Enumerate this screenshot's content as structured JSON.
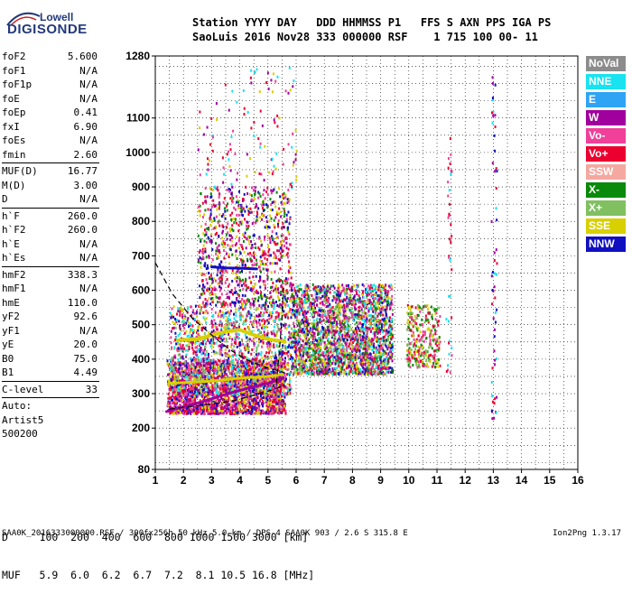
{
  "logo": {
    "brand_top": "Lowell",
    "brand_main": "DIGISONDE"
  },
  "header": {
    "line1": "Station YYYY DAY   DDD HHMMSS P1   FFS S AXN PPS IGA PS",
    "line2": "SaoLuis 2016 Nov28 333 000000 RSF    1 715 100 00- 11"
  },
  "params": {
    "group1": [
      {
        "label": "foF2",
        "value": "5.600"
      },
      {
        "label": "foF1",
        "value": "N/A"
      },
      {
        "label": "foF1p",
        "value": "N/A"
      },
      {
        "label": "foE",
        "value": "N/A"
      },
      {
        "label": "foEp",
        "value": "0.41"
      },
      {
        "label": "fxI",
        "value": "6.90"
      },
      {
        "label": "foEs",
        "value": "N/A"
      },
      {
        "label": "fmin",
        "value": "2.60"
      }
    ],
    "group2": [
      {
        "label": "MUF(D)",
        "value": "16.77"
      },
      {
        "label": "M(D)",
        "value": "3.00"
      },
      {
        "label": "D",
        "value": "N/A"
      }
    ],
    "group3": [
      {
        "label": "h`F",
        "value": "260.0"
      },
      {
        "label": "h`F2",
        "value": "260.0"
      },
      {
        "label": "h`E",
        "value": "N/A"
      },
      {
        "label": "h`Es",
        "value": "N/A"
      }
    ],
    "group4": [
      {
        "label": "hmF2",
        "value": "338.3"
      },
      {
        "label": "hmF1",
        "value": "N/A"
      },
      {
        "label": "hmE",
        "value": "110.0"
      },
      {
        "label": "yF2",
        "value": "92.6"
      },
      {
        "label": "yF1",
        "value": "N/A"
      },
      {
        "label": "yE",
        "value": "20.0"
      },
      {
        "label": "B0",
        "value": "75.0"
      },
      {
        "label": "B1",
        "value": "4.49"
      }
    ],
    "group5": [
      {
        "label": "C-level",
        "value": "33"
      }
    ],
    "autoscaling": [
      "Auto:",
      "Artist5",
      "500200"
    ]
  },
  "legend": [
    {
      "name": "NoVal",
      "color": "#8c8c8c"
    },
    {
      "name": "NNE",
      "color": "#19e3f0"
    },
    {
      "name": "E",
      "color": "#2fa4f5"
    },
    {
      "name": "W",
      "color": "#a0009e"
    },
    {
      "name": "Vo-",
      "color": "#f0409a"
    },
    {
      "name": "Vo+",
      "color": "#ec0030"
    },
    {
      "name": "SSW",
      "color": "#f4a8a0"
    },
    {
      "name": "X-",
      "color": "#0a8a0a"
    },
    {
      "name": "X+",
      "color": "#80c060"
    },
    {
      "name": "SSE",
      "color": "#d8d000"
    },
    {
      "name": "NNW",
      "color": "#1010c0"
    }
  ],
  "bottom_table": {
    "line1": "D     100  200  400  600  800 1000 1500 3000 [km]",
    "line2": "MUF   5.9  6.0  6.2  6.7  7.2  8.1 10.5 16.8 [MHz]"
  },
  "footer": {
    "left": "SAA0K_2016333000000.RSF / 300fx256h 50 kHz 5.0 km / DPS-4 SAA0K 903 / 2.6 S 315.8 E",
    "right": "Ion2Png 1.3.17"
  },
  "chart_data": {
    "type": "scatter",
    "title": "",
    "xlabel": "",
    "ylabel": "",
    "xlim": [
      1,
      16
    ],
    "ylim": [
      80,
      1280
    ],
    "x_ticks": [
      1,
      2,
      3,
      4,
      5,
      6,
      7,
      8,
      9,
      10,
      11,
      12,
      13,
      14,
      15,
      16
    ],
    "y_ticks": [
      80,
      200,
      300,
      400,
      500,
      600,
      700,
      800,
      900,
      1000,
      1100,
      1280
    ],
    "grid": true,
    "legend_position": "right",
    "clusters": [
      {
        "x_range": [
          1.4,
          5.6
        ],
        "y_range": [
          245,
          400
        ],
        "colors": [
          "#a0009e",
          "#ec0030",
          "#f0409a",
          "#1010c0",
          "#d8d000"
        ],
        "density": 0.9,
        "count": 2200
      },
      {
        "x_range": [
          1.5,
          5.8
        ],
        "y_range": [
          300,
          560
        ],
        "colors": [
          "#ec0030",
          "#f0409a",
          "#a0009e",
          "#d8d000",
          "#80c060",
          "#1010c0",
          "#19e3f0"
        ],
        "density": 0.6,
        "count": 1500
      },
      {
        "x_range": [
          2.5,
          5.8
        ],
        "y_range": [
          560,
          900
        ],
        "colors": [
          "#ec0030",
          "#f0409a",
          "#a0009e",
          "#1010c0",
          "#d8d000",
          "#0a8a0a"
        ],
        "density": 0.25,
        "count": 900
      },
      {
        "x_range": [
          5.8,
          9.4
        ],
        "y_range": [
          360,
          620
        ],
        "colors": [
          "#ec0030",
          "#f0409a",
          "#a0009e",
          "#1010c0",
          "#d8d000",
          "#80c060",
          "#0a8a0a",
          "#19e3f0"
        ],
        "density": 0.6,
        "count": 2400
      },
      {
        "x_range": [
          9.9,
          11.1
        ],
        "y_range": [
          380,
          560
        ],
        "colors": [
          "#ec0030",
          "#f0409a",
          "#80c060",
          "#d8d000",
          "#0a8a0a"
        ],
        "density": 0.45,
        "count": 300
      },
      {
        "x_range": [
          2.5,
          6.0
        ],
        "y_range": [
          900,
          1250
        ],
        "colors": [
          "#ec0030",
          "#f0409a",
          "#a0009e",
          "#d8d000",
          "#19e3f0"
        ],
        "density": 0.05,
        "count": 120
      },
      {
        "x_range": [
          12.9,
          13.1
        ],
        "y_range": [
          230,
          1260
        ],
        "colors": [
          "#1010c0",
          "#a0009e",
          "#19e3f0",
          "#ec0030"
        ],
        "density": 0.05,
        "count": 60
      },
      {
        "x_range": [
          11.3,
          11.5
        ],
        "y_range": [
          300,
          1050
        ],
        "colors": [
          "#ec0030",
          "#19e3f0",
          "#f0409a"
        ],
        "density": 0.05,
        "count": 40
      }
    ],
    "traces": [
      {
        "name": "W",
        "color": "#a0009e",
        "points": [
          [
            1.4,
            248
          ],
          [
            2.0,
            262
          ],
          [
            2.6,
            275
          ],
          [
            3.2,
            290
          ],
          [
            3.8,
            305
          ],
          [
            4.4,
            318
          ],
          [
            5.0,
            330
          ],
          [
            5.5,
            345
          ]
        ],
        "width": 3
      },
      {
        "name": "SSE",
        "color": "#d8d000",
        "points": [
          [
            1.8,
            455
          ],
          [
            2.5,
            458
          ],
          [
            3.0,
            470
          ],
          [
            3.5,
            480
          ],
          [
            4.0,
            485
          ],
          [
            4.5,
            470
          ],
          [
            5.0,
            458
          ],
          [
            5.6,
            450
          ]
        ],
        "width": 4
      },
      {
        "name": "SSE",
        "color": "#d8d000",
        "points": [
          [
            1.5,
            330
          ],
          [
            2.0,
            332
          ],
          [
            3.0,
            336
          ],
          [
            4.0,
            345
          ],
          [
            5.0,
            350
          ],
          [
            5.5,
            356
          ]
        ],
        "width": 3
      },
      {
        "name": "NNW",
        "color": "#1010c0",
        "points": [
          [
            3.0,
            668
          ],
          [
            3.5,
            665
          ],
          [
            4.0,
            664
          ],
          [
            4.6,
            662
          ]
        ],
        "width": 3
      }
    ],
    "model_curves": [
      {
        "style": "dashed",
        "points": [
          [
            1.0,
            680
          ],
          [
            1.6,
            590
          ],
          [
            2.3,
            520
          ],
          [
            3.0,
            470
          ],
          [
            3.6,
            430
          ],
          [
            4.2,
            400
          ],
          [
            4.8,
            380
          ],
          [
            5.2,
            370
          ],
          [
            5.6,
            360
          ]
        ]
      },
      {
        "style": "dashed",
        "points": [
          [
            1.5,
            255
          ],
          [
            2.2,
            262
          ],
          [
            3.0,
            270
          ],
          [
            3.8,
            280
          ],
          [
            4.5,
            295
          ],
          [
            5.2,
            312
          ],
          [
            5.6,
            325
          ]
        ]
      },
      {
        "style": "dashed",
        "points": [
          [
            5.3,
            330
          ],
          [
            5.4,
            420
          ],
          [
            5.5,
            520
          ],
          [
            5.55,
            620
          ]
        ]
      }
    ]
  }
}
